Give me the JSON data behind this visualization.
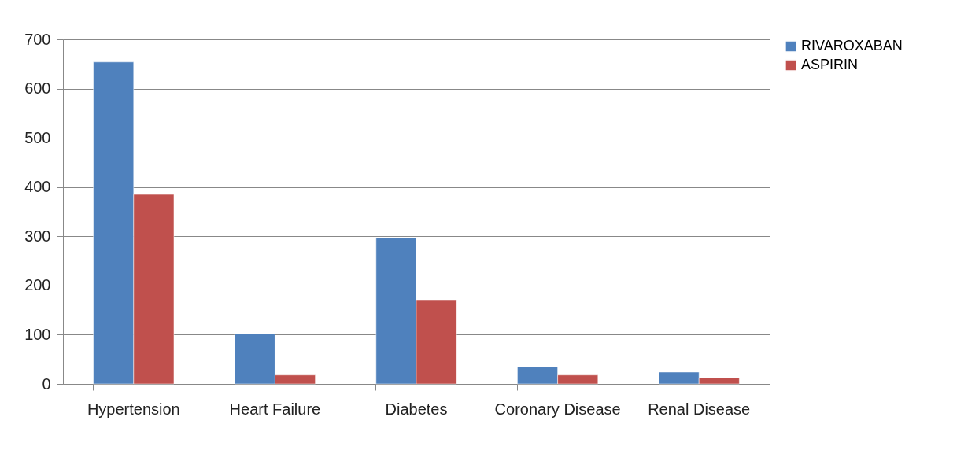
{
  "chart_data": {
    "type": "bar",
    "categories": [
      "Hypertension",
      "Heart Failure",
      "Diabetes",
      "Coronary Disease",
      "Renal Disease"
    ],
    "series": [
      {
        "name": "RIVAROXABAN",
        "color": "#4f81bd",
        "values": [
          654,
          102,
          297,
          35,
          24
        ]
      },
      {
        "name": "ASPIRIN",
        "color": "#c0504d",
        "values": [
          385,
          18,
          171,
          18,
          12
        ]
      }
    ],
    "ylim": [
      0,
      700
    ],
    "yticks": [
      0,
      100,
      200,
      300,
      400,
      500,
      600,
      700
    ],
    "grid": "y",
    "legend": "right"
  }
}
